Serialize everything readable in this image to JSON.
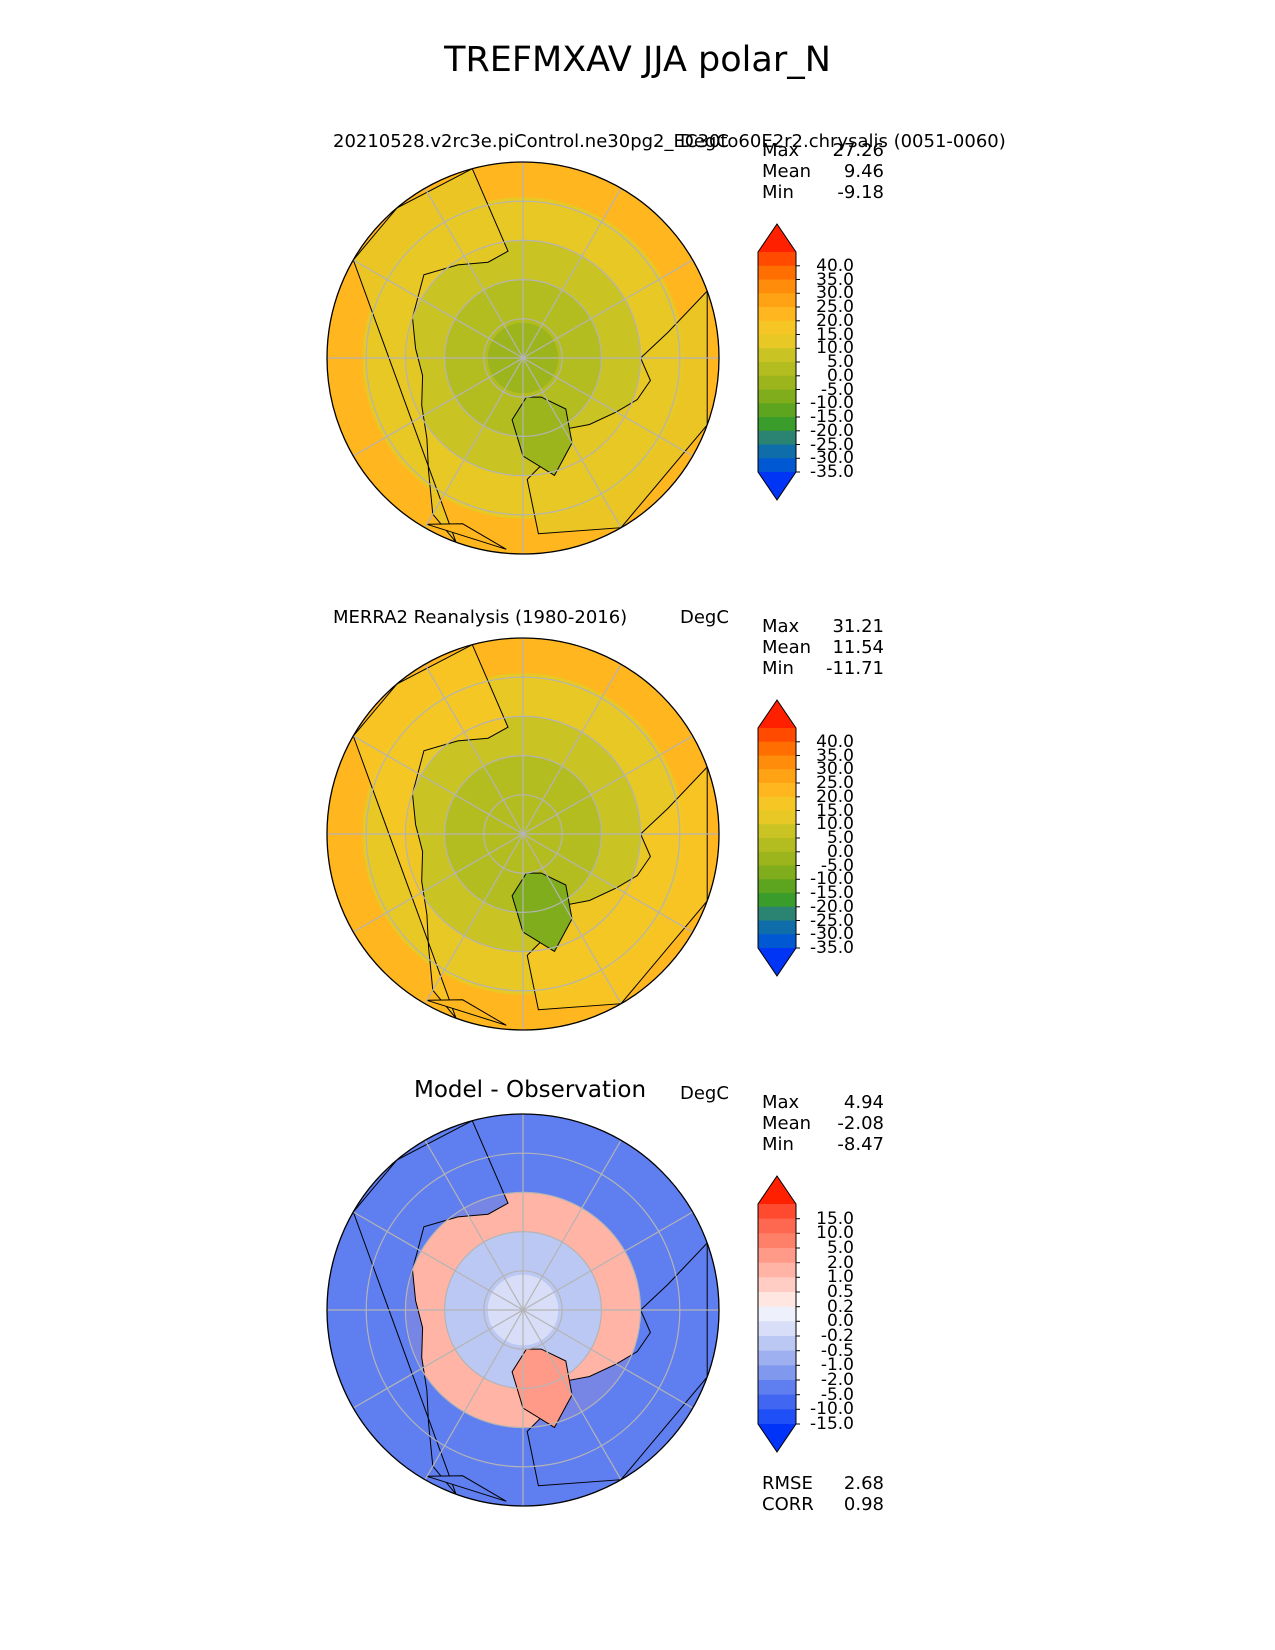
{
  "title": "TREFMXAV JJA polar_N",
  "chart_data": [
    {
      "type": "heatmap",
      "projection": "north-polar-stereographic",
      "title": "20210528.v2rc3e.piControl.ne30pg2_EC30to60E2r2.chrysalis (0051-0060)",
      "units": "DegC",
      "stats": {
        "max_label": "Max",
        "max": "27.26",
        "mean_label": "Mean",
        "mean": "9.46",
        "min_label": "Min",
        "min": "-9.18"
      },
      "colorbar": {
        "levels": [
          "40.0",
          "35.0",
          "30.0",
          "25.0",
          "20.0",
          "15.0",
          "10.0",
          "5.0",
          "0.0",
          "-5.0",
          "-10.0",
          "-15.0",
          "-20.0",
          "-25.0",
          "-30.0",
          "-35.0"
        ],
        "colors": [
          "#ff2000",
          "#ff4a00",
          "#ff6e00",
          "#ff8c0a",
          "#ffa315",
          "#ffb61f",
          "#f6c724",
          "#e8c824",
          "#c9c423",
          "#b4bd20",
          "#9cb51d",
          "#7fad1b",
          "#5ea51f",
          "#3a9c2b",
          "#2b8472",
          "#0f6eaa",
          "#0058d2",
          "#0035f5"
        ]
      },
      "fields": {
        "pole": -2,
        "ring1": 2,
        "ring2": 6,
        "land": 14,
        "greenland": -4,
        "ocean_mid": 12,
        "south_edge": 20
      }
    },
    {
      "type": "heatmap",
      "projection": "north-polar-stereographic",
      "title": "MERRA2 Reanalysis (1980-2016)",
      "units": "DegC",
      "stats": {
        "max_label": "Max",
        "max": "31.21",
        "mean_label": "Mean",
        "mean": "11.54",
        "min_label": "Min",
        "min": "-11.71"
      },
      "colorbar": {
        "levels": [
          "40.0",
          "35.0",
          "30.0",
          "25.0",
          "20.0",
          "15.0",
          "10.0",
          "5.0",
          "0.0",
          "-5.0",
          "-10.0",
          "-15.0",
          "-20.0",
          "-25.0",
          "-30.0",
          "-35.0"
        ],
        "colors": [
          "#ff2000",
          "#ff4a00",
          "#ff6e00",
          "#ff8c0a",
          "#ffa315",
          "#ffb61f",
          "#f6c724",
          "#e8c824",
          "#c9c423",
          "#b4bd20",
          "#9cb51d",
          "#7fad1b",
          "#5ea51f",
          "#3a9c2b",
          "#2b8472",
          "#0f6eaa",
          "#0058d2",
          "#0035f5"
        ]
      },
      "fields": {
        "pole": 0,
        "ring1": 4,
        "ring2": 8,
        "land": 16,
        "greenland": -6,
        "ocean_mid": 14,
        "south_edge": 24
      }
    },
    {
      "type": "heatmap",
      "projection": "north-polar-stereographic",
      "title": "Model - Observation",
      "units": "DegC",
      "stats": {
        "max_label": "Max",
        "max": "4.94",
        "mean_label": "Mean",
        "mean": "-2.08",
        "min_label": "Min",
        "min": "-8.47"
      },
      "metrics": {
        "rmse_label": "RMSE",
        "rmse": "2.68",
        "corr_label": "CORR",
        "corr": "0.98"
      },
      "colorbar": {
        "levels": [
          "15.0",
          "10.0",
          "5.0",
          "2.0",
          "1.0",
          "0.5",
          "0.2",
          "0.0",
          "-0.2",
          "-0.5",
          "-1.0",
          "-2.0",
          "-5.0",
          "-10.0",
          "-15.0"
        ],
        "colors": [
          "#ff2000",
          "#ff4a30",
          "#ff6850",
          "#ff8068",
          "#ff9a88",
          "#ffb4a6",
          "#ffcdc4",
          "#ffe6e0",
          "#eef0fb",
          "#d8def7",
          "#bcc8f4",
          "#9fb0f0",
          "#8098ee",
          "#5f7ef0",
          "#4066f2",
          "#1f4ff6",
          "#0033f8"
        ]
      },
      "fields": {
        "pole": -0.1,
        "ring1": -0.4,
        "ring2": 1.5,
        "land": -3,
        "greenland": 3,
        "ocean_mid": -2.5,
        "south_edge": -4
      }
    }
  ]
}
